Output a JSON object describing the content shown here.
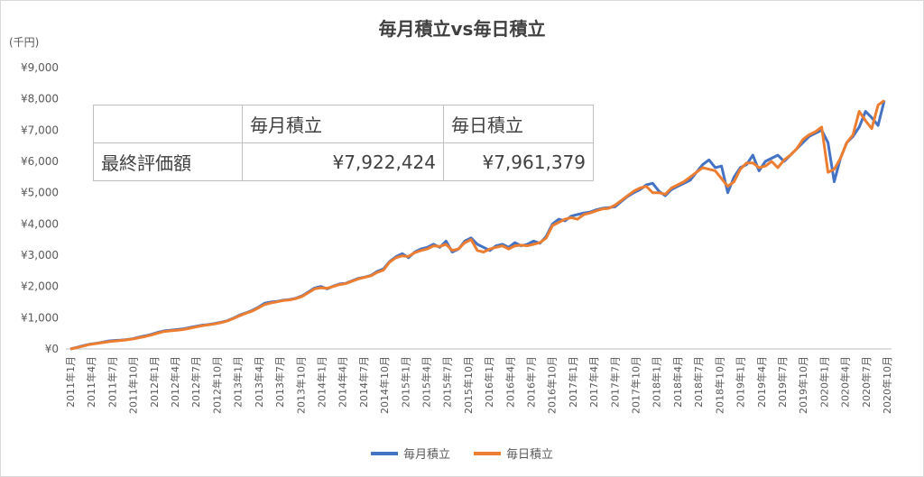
{
  "chart_data": {
    "type": "line",
    "title": "毎月積立vs毎日積立",
    "ylabel": "(千円)",
    "ylim": [
      0,
      9000
    ],
    "y_ticks": [
      {
        "value": 0,
        "label": "¥0"
      },
      {
        "value": 1000,
        "label": "¥1,000"
      },
      {
        "value": 2000,
        "label": "¥2,000"
      },
      {
        "value": 3000,
        "label": "¥3,000"
      },
      {
        "value": 4000,
        "label": "¥4,000"
      },
      {
        "value": 5000,
        "label": "¥5,000"
      },
      {
        "value": 6000,
        "label": "¥6,000"
      },
      {
        "value": 7000,
        "label": "¥7,000"
      },
      {
        "value": 8000,
        "label": "¥8,000"
      },
      {
        "value": 9000,
        "label": "¥9,000"
      }
    ],
    "x_ticks": [
      "2011年1月",
      "2011年4月",
      "2011年7月",
      "2011年10月",
      "2012年1月",
      "2012年4月",
      "2012年7月",
      "2012年10月",
      "2013年1月",
      "2013年4月",
      "2013年7月",
      "2013年10月",
      "2014年1月",
      "2014年4月",
      "2014年7月",
      "2014年10月",
      "2015年1月",
      "2015年4月",
      "2015年7月",
      "2015年10月",
      "2016年1月",
      "2016年4月",
      "2016年7月",
      "2016年10月",
      "2017年1月",
      "2017年4月",
      "2017年7月",
      "2017年10月",
      "2018年1月",
      "2018年4月",
      "2018年7月",
      "2018年10月",
      "2019年1月",
      "2019年4月",
      "2019年7月",
      "2019年10月",
      "2020年1月",
      "2020年4月",
      "2020年7月",
      "2020年10月"
    ],
    "grid": false,
    "legend_position": "bottom",
    "series": [
      {
        "name": "毎月積立",
        "color": "#4472c4",
        "values": [
          0,
          50,
          100,
          150,
          180,
          210,
          250,
          270,
          280,
          300,
          330,
          380,
          420,
          470,
          530,
          580,
          600,
          620,
          640,
          680,
          720,
          760,
          780,
          810,
          850,
          900,
          980,
          1080,
          1150,
          1230,
          1330,
          1460,
          1500,
          1520,
          1560,
          1580,
          1620,
          1700,
          1820,
          1950,
          2000,
          1920,
          2010,
          2080,
          2100,
          2180,
          2260,
          2300,
          2350,
          2480,
          2560,
          2800,
          2950,
          3050,
          2920,
          3100,
          3200,
          3250,
          3350,
          3250,
          3450,
          3100,
          3200,
          3450,
          3550,
          3350,
          3250,
          3150,
          3300,
          3350,
          3250,
          3400,
          3300,
          3350,
          3450,
          3380,
          3600,
          4000,
          4150,
          4100,
          4250,
          4300,
          4350,
          4380,
          4450,
          4500,
          4520,
          4550,
          4720,
          4880,
          5000,
          5100,
          5250,
          5300,
          5050,
          4900,
          5100,
          5200,
          5300,
          5400,
          5650,
          5900,
          6050,
          5800,
          5850,
          5000,
          5500,
          5800,
          5900,
          6200,
          5700,
          6000,
          6100,
          6200,
          6000,
          6200,
          6400,
          6600,
          6800,
          6900,
          7000,
          6600,
          5350,
          6100,
          6600,
          6800,
          7100,
          7600,
          7400,
          7150,
          7950
        ]
      },
      {
        "name": "毎日積立",
        "color": "#ed7d31",
        "values": [
          0,
          40,
          90,
          140,
          170,
          200,
          230,
          250,
          270,
          290,
          320,
          360,
          400,
          450,
          510,
          560,
          580,
          600,
          620,
          660,
          700,
          740,
          770,
          800,
          840,
          890,
          970,
          1060,
          1140,
          1210,
          1310,
          1420,
          1470,
          1510,
          1550,
          1570,
          1610,
          1680,
          1800,
          1920,
          1960,
          1940,
          2000,
          2060,
          2090,
          2170,
          2240,
          2290,
          2340,
          2450,
          2520,
          2780,
          2920,
          2980,
          2960,
          3080,
          3150,
          3200,
          3300,
          3280,
          3350,
          3150,
          3200,
          3400,
          3500,
          3150,
          3100,
          3200,
          3250,
          3300,
          3200,
          3300,
          3320,
          3300,
          3350,
          3400,
          3550,
          3950,
          4050,
          4150,
          4200,
          4150,
          4300,
          4350,
          4420,
          4480,
          4500,
          4600,
          4750,
          4900,
          5050,
          5150,
          5200,
          5000,
          5000,
          4950,
          5150,
          5250,
          5350,
          5500,
          5650,
          5800,
          5750,
          5700,
          5450,
          5200,
          5350,
          5750,
          5950,
          5950,
          5800,
          5850,
          6000,
          5800,
          6050,
          6200,
          6400,
          6700,
          6850,
          6950,
          7100,
          5650,
          5750,
          6100,
          6600,
          6850,
          7600,
          7300,
          7050,
          7800,
          7950
        ]
      }
    ]
  },
  "summary_table": {
    "header_blank": "",
    "col1": "毎月積立",
    "col2": "毎日積立",
    "row_label": "最終評価額",
    "val1": "¥7,922,424",
    "val2": "¥7,961,379"
  }
}
